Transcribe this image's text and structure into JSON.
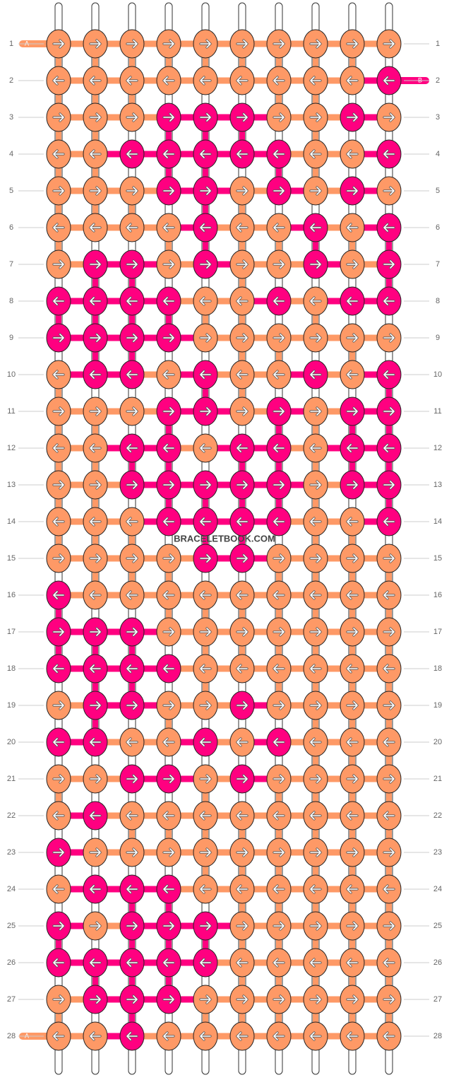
{
  "pattern": {
    "watermark": "BRACELETBOOK.COM",
    "start_labels": {
      "top": "A",
      "right": "B",
      "bottom": "A"
    },
    "rows": [
      {
        "label": "1",
        "dir": "right",
        "colors": [
          "#fe9966",
          "#fe9966",
          "#fe9966",
          "#fe9966",
          "#fe9966",
          "#fe9966",
          "#fe9966",
          "#fe9966",
          "#fe9966",
          "#fe9966"
        ]
      },
      {
        "label": "2",
        "dir": "left",
        "colors": [
          "#fe9966",
          "#fe9966",
          "#fe9966",
          "#fe9966",
          "#fe9966",
          "#fe9966",
          "#fe9966",
          "#fe9966",
          "#fe9966",
          "#ff0080"
        ]
      },
      {
        "label": "3",
        "dir": "right",
        "colors": [
          "#fe9966",
          "#fe9966",
          "#fe9966",
          "#ff0080",
          "#ff0080",
          "#ff0080",
          "#fe9966",
          "#fe9966",
          "#ff0080",
          "#fe9966"
        ]
      },
      {
        "label": "4",
        "dir": "left",
        "colors": [
          "#fe9966",
          "#fe9966",
          "#ff0080",
          "#ff0080",
          "#ff0080",
          "#ff0080",
          "#ff0080",
          "#fe9966",
          "#fe9966",
          "#ff0080"
        ]
      },
      {
        "label": "5",
        "dir": "right",
        "colors": [
          "#fe9966",
          "#fe9966",
          "#fe9966",
          "#ff0080",
          "#ff0080",
          "#fe9966",
          "#ff0080",
          "#fe9966",
          "#ff0080",
          "#fe9966"
        ]
      },
      {
        "label": "6",
        "dir": "left",
        "colors": [
          "#fe9966",
          "#fe9966",
          "#fe9966",
          "#fe9966",
          "#ff0080",
          "#fe9966",
          "#fe9966",
          "#ff0080",
          "#fe9966",
          "#ff0080"
        ]
      },
      {
        "label": "7",
        "dir": "right",
        "colors": [
          "#fe9966",
          "#ff0080",
          "#ff0080",
          "#fe9966",
          "#ff0080",
          "#fe9966",
          "#fe9966",
          "#ff0080",
          "#fe9966",
          "#ff0080"
        ]
      },
      {
        "label": "8",
        "dir": "left",
        "colors": [
          "#ff0080",
          "#ff0080",
          "#ff0080",
          "#ff0080",
          "#fe9966",
          "#fe9966",
          "#ff0080",
          "#fe9966",
          "#ff0080",
          "#ff0080"
        ]
      },
      {
        "label": "9",
        "dir": "right",
        "colors": [
          "#ff0080",
          "#ff0080",
          "#ff0080",
          "#ff0080",
          "#fe9966",
          "#fe9966",
          "#fe9966",
          "#fe9966",
          "#fe9966",
          "#fe9966"
        ]
      },
      {
        "label": "10",
        "dir": "left",
        "colors": [
          "#fe9966",
          "#ff0080",
          "#ff0080",
          "#fe9966",
          "#ff0080",
          "#fe9966",
          "#fe9966",
          "#ff0080",
          "#fe9966",
          "#ff0080"
        ]
      },
      {
        "label": "11",
        "dir": "right",
        "colors": [
          "#fe9966",
          "#fe9966",
          "#fe9966",
          "#ff0080",
          "#ff0080",
          "#fe9966",
          "#ff0080",
          "#fe9966",
          "#ff0080",
          "#ff0080"
        ]
      },
      {
        "label": "12",
        "dir": "left",
        "colors": [
          "#fe9966",
          "#fe9966",
          "#ff0080",
          "#ff0080",
          "#fe9966",
          "#ff0080",
          "#ff0080",
          "#fe9966",
          "#ff0080",
          "#ff0080"
        ]
      },
      {
        "label": "13",
        "dir": "right",
        "colors": [
          "#fe9966",
          "#fe9966",
          "#ff0080",
          "#ff0080",
          "#ff0080",
          "#ff0080",
          "#ff0080",
          "#fe9966",
          "#ff0080",
          "#ff0080"
        ]
      },
      {
        "label": "14",
        "dir": "left",
        "colors": [
          "#fe9966",
          "#fe9966",
          "#fe9966",
          "#ff0080",
          "#ff0080",
          "#ff0080",
          "#ff0080",
          "#fe9966",
          "#fe9966",
          "#ff0080"
        ]
      },
      {
        "label": "15",
        "dir": "right",
        "colors": [
          "#fe9966",
          "#fe9966",
          "#fe9966",
          "#fe9966",
          "#ff0080",
          "#ff0080",
          "#fe9966",
          "#fe9966",
          "#fe9966",
          "#fe9966"
        ]
      },
      {
        "label": "16",
        "dir": "left",
        "colors": [
          "#ff0080",
          "#fe9966",
          "#fe9966",
          "#fe9966",
          "#fe9966",
          "#fe9966",
          "#fe9966",
          "#fe9966",
          "#fe9966",
          "#fe9966"
        ]
      },
      {
        "label": "17",
        "dir": "right",
        "colors": [
          "#ff0080",
          "#ff0080",
          "#ff0080",
          "#fe9966",
          "#fe9966",
          "#fe9966",
          "#fe9966",
          "#fe9966",
          "#fe9966",
          "#fe9966"
        ]
      },
      {
        "label": "18",
        "dir": "left",
        "colors": [
          "#ff0080",
          "#ff0080",
          "#ff0080",
          "#ff0080",
          "#fe9966",
          "#fe9966",
          "#fe9966",
          "#fe9966",
          "#fe9966",
          "#fe9966"
        ]
      },
      {
        "label": "19",
        "dir": "right",
        "colors": [
          "#fe9966",
          "#ff0080",
          "#ff0080",
          "#fe9966",
          "#fe9966",
          "#ff0080",
          "#fe9966",
          "#fe9966",
          "#fe9966",
          "#fe9966"
        ]
      },
      {
        "label": "20",
        "dir": "left",
        "colors": [
          "#ff0080",
          "#ff0080",
          "#fe9966",
          "#fe9966",
          "#ff0080",
          "#fe9966",
          "#ff0080",
          "#fe9966",
          "#fe9966",
          "#fe9966"
        ]
      },
      {
        "label": "21",
        "dir": "right",
        "colors": [
          "#fe9966",
          "#fe9966",
          "#ff0080",
          "#ff0080",
          "#fe9966",
          "#ff0080",
          "#fe9966",
          "#fe9966",
          "#fe9966",
          "#fe9966"
        ]
      },
      {
        "label": "22",
        "dir": "left",
        "colors": [
          "#fe9966",
          "#ff0080",
          "#fe9966",
          "#fe9966",
          "#fe9966",
          "#fe9966",
          "#fe9966",
          "#fe9966",
          "#fe9966",
          "#fe9966"
        ]
      },
      {
        "label": "23",
        "dir": "right",
        "colors": [
          "#ff0080",
          "#fe9966",
          "#fe9966",
          "#fe9966",
          "#fe9966",
          "#fe9966",
          "#fe9966",
          "#fe9966",
          "#fe9966",
          "#fe9966"
        ]
      },
      {
        "label": "24",
        "dir": "left",
        "colors": [
          "#fe9966",
          "#ff0080",
          "#ff0080",
          "#ff0080",
          "#fe9966",
          "#fe9966",
          "#fe9966",
          "#fe9966",
          "#fe9966",
          "#fe9966"
        ]
      },
      {
        "label": "25",
        "dir": "right",
        "colors": [
          "#ff0080",
          "#fe9966",
          "#ff0080",
          "#ff0080",
          "#ff0080",
          "#fe9966",
          "#fe9966",
          "#fe9966",
          "#fe9966",
          "#fe9966"
        ]
      },
      {
        "label": "26",
        "dir": "left",
        "colors": [
          "#ff0080",
          "#ff0080",
          "#ff0080",
          "#ff0080",
          "#ff0080",
          "#fe9966",
          "#fe9966",
          "#fe9966",
          "#fe9966",
          "#fe9966"
        ]
      },
      {
        "label": "27",
        "dir": "right",
        "colors": [
          "#fe9966",
          "#ff0080",
          "#ff0080",
          "#ff0080",
          "#fe9966",
          "#fe9966",
          "#fe9966",
          "#fe9966",
          "#fe9966",
          "#fe9966"
        ]
      },
      {
        "label": "28",
        "dir": "left",
        "colors": [
          "#fe9966",
          "#fe9966",
          "#ff0080",
          "#fe9966",
          "#fe9966",
          "#fe9966",
          "#fe9966",
          "#fe9966",
          "#fe9966",
          "#fe9966"
        ]
      }
    ]
  }
}
